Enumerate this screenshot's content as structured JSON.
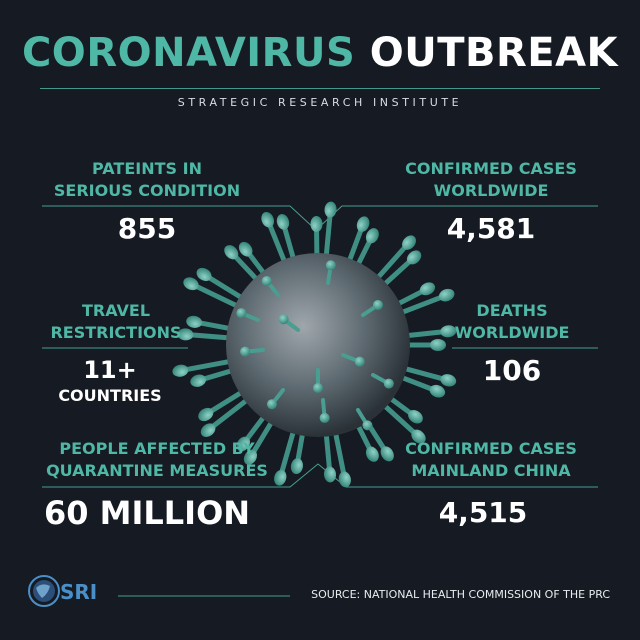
{
  "header": {
    "title_part1": "CORONAVIRUS",
    "title_part2": "OUTBREAK",
    "subtitle": "STRATEGIC RESEARCH INSTITUTE"
  },
  "stats": {
    "serious_label_1": "PATEINTS IN",
    "serious_label_2": "SERIOUS CONDITION",
    "serious_value": "855",
    "confirmed_ww_label_1": "CONFIRMED CASES",
    "confirmed_ww_label_2": "WORLDWIDE",
    "confirmed_ww_value": "4,581",
    "travel_label_1": "TRAVEL",
    "travel_label_2": "RESTRICTIONS",
    "travel_value": "11+",
    "travel_unit": "COUNTRIES",
    "deaths_label_1": "DEATHS",
    "deaths_label_2": "WORLDWIDE",
    "deaths_value": "106",
    "quarantine_label_1": "PEOPLE AFFECTED BY",
    "quarantine_label_2": "QUARANTINE MEASURES",
    "quarantine_value": "60 MILLION",
    "china_label_1": "CONFIRMED CASES",
    "china_label_2": "MAINLAND CHINA",
    "china_value": "4,515"
  },
  "footer": {
    "logo_text": "SRI",
    "source": "SOURCE: NATIONAL HEALTH COMMISSION OF THE PRC"
  },
  "colors": {
    "background": "#161a22",
    "accent": "#4fb7a6",
    "text": "#ffffff"
  }
}
